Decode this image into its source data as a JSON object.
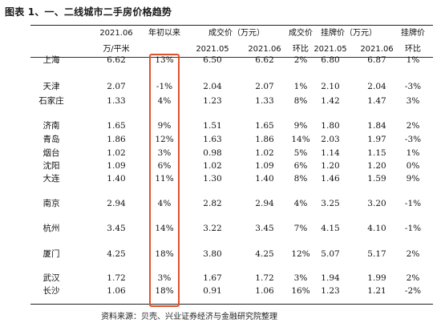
{
  "title": "图表 1、一、二线城市二手房价格趋势",
  "header": {
    "rows": [
      {
        "top": 36,
        "cells": [
          {
            "x": 145,
            "text": "2021.06"
          },
          {
            "x": 205,
            "text": "年初以来"
          },
          {
            "x": 295,
            "text": "成交价（万元）"
          },
          {
            "x": 375,
            "text": "成交价"
          },
          {
            "x": 435,
            "text": "挂牌价（万元）"
          },
          {
            "x": 515,
            "text": "挂牌价"
          }
        ]
      },
      {
        "top": 56,
        "cells": [
          {
            "x": 145,
            "text": "万/平米"
          },
          {
            "x": 265,
            "text": "2021.05"
          },
          {
            "x": 330,
            "text": "2021.06"
          },
          {
            "x": 375,
            "text": "环比"
          },
          {
            "x": 412,
            "text": "2021.05"
          },
          {
            "x": 470,
            "text": "2021.06"
          },
          {
            "x": 515,
            "text": "环比"
          }
        ]
      }
    ]
  },
  "table": {
    "rows": [
      {
        "city": "上海",
        "price": "6.62",
        "ytd": "13%",
        "deal_may": "6.50",
        "deal_jun": "6.62",
        "deal_mom": "2%",
        "list_may": "6.80",
        "list_jun": "6.87",
        "list_mom": "1%"
      },
      {
        "city": "天津",
        "price": "2.07",
        "ytd": "-1%",
        "deal_may": "2.04",
        "deal_jun": "2.07",
        "deal_mom": "1%",
        "list_may": "2.10",
        "list_jun": "2.04",
        "list_mom": "-3%"
      },
      {
        "city": "石家庄",
        "price": "1.33",
        "ytd": "4%",
        "deal_may": "1.23",
        "deal_jun": "1.33",
        "deal_mom": "8%",
        "list_may": "1.42",
        "list_jun": "1.47",
        "list_mom": "3%"
      },
      {
        "city": "济南",
        "price": "1.65",
        "ytd": "9%",
        "deal_may": "1.51",
        "deal_jun": "1.65",
        "deal_mom": "9%",
        "list_may": "1.80",
        "list_jun": "1.84",
        "list_mom": "2%"
      },
      {
        "city": "青岛",
        "price": "1.86",
        "ytd": "12%",
        "deal_may": "1.63",
        "deal_jun": "1.86",
        "deal_mom": "14%",
        "list_may": "2.03",
        "list_jun": "1.97",
        "list_mom": "-3%"
      },
      {
        "city": "烟台",
        "price": "1.02",
        "ytd": "3%",
        "deal_may": "0.98",
        "deal_jun": "1.02",
        "deal_mom": "5%",
        "list_may": "1.14",
        "list_jun": "1.15",
        "list_mom": "1%"
      },
      {
        "city": "沈阳",
        "price": "1.09",
        "ytd": "6%",
        "deal_may": "1.02",
        "deal_jun": "1.09",
        "deal_mom": "6%",
        "list_may": "1.20",
        "list_jun": "1.20",
        "list_mom": "0%"
      },
      {
        "city": "大连",
        "price": "1.40",
        "ytd": "11%",
        "deal_may": "1.30",
        "deal_jun": "1.40",
        "deal_mom": "8%",
        "list_may": "1.46",
        "list_jun": "1.59",
        "list_mom": "9%"
      },
      {
        "city": "南京",
        "price": "2.94",
        "ytd": "4%",
        "deal_may": "2.82",
        "deal_jun": "2.94",
        "deal_mom": "4%",
        "list_may": "3.25",
        "list_jun": "3.20",
        "list_mom": "-1%"
      },
      {
        "city": "杭州",
        "price": "3.45",
        "ytd": "14%",
        "deal_may": "3.22",
        "deal_jun": "3.45",
        "deal_mom": "7%",
        "list_may": "4.15",
        "list_jun": "4.10",
        "list_mom": "-1%"
      },
      {
        "city": "厦门",
        "price": "4.25",
        "ytd": "18%",
        "deal_may": "3.80",
        "deal_jun": "4.25",
        "deal_mom": "12%",
        "list_may": "5.07",
        "list_jun": "5.17",
        "list_mom": "2%"
      },
      {
        "city": "武汉",
        "price": "1.72",
        "ytd": "3%",
        "deal_may": "1.67",
        "deal_jun": "1.72",
        "deal_mom": "3%",
        "list_may": "1.94",
        "list_jun": "1.99",
        "list_mom": "2%"
      },
      {
        "city": "长沙",
        "price": "1.06",
        "ytd": "18%",
        "deal_may": "0.91",
        "deal_jun": "1.06",
        "deal_mom": "16%",
        "list_may": "1.23",
        "list_jun": "1.21",
        "list_mom": "-2%"
      }
    ]
  },
  "source": "资料来源：贝壳、兴业证券经济与金融研究院整理",
  "colors": {
    "highlight_border": "#e0522b"
  }
}
